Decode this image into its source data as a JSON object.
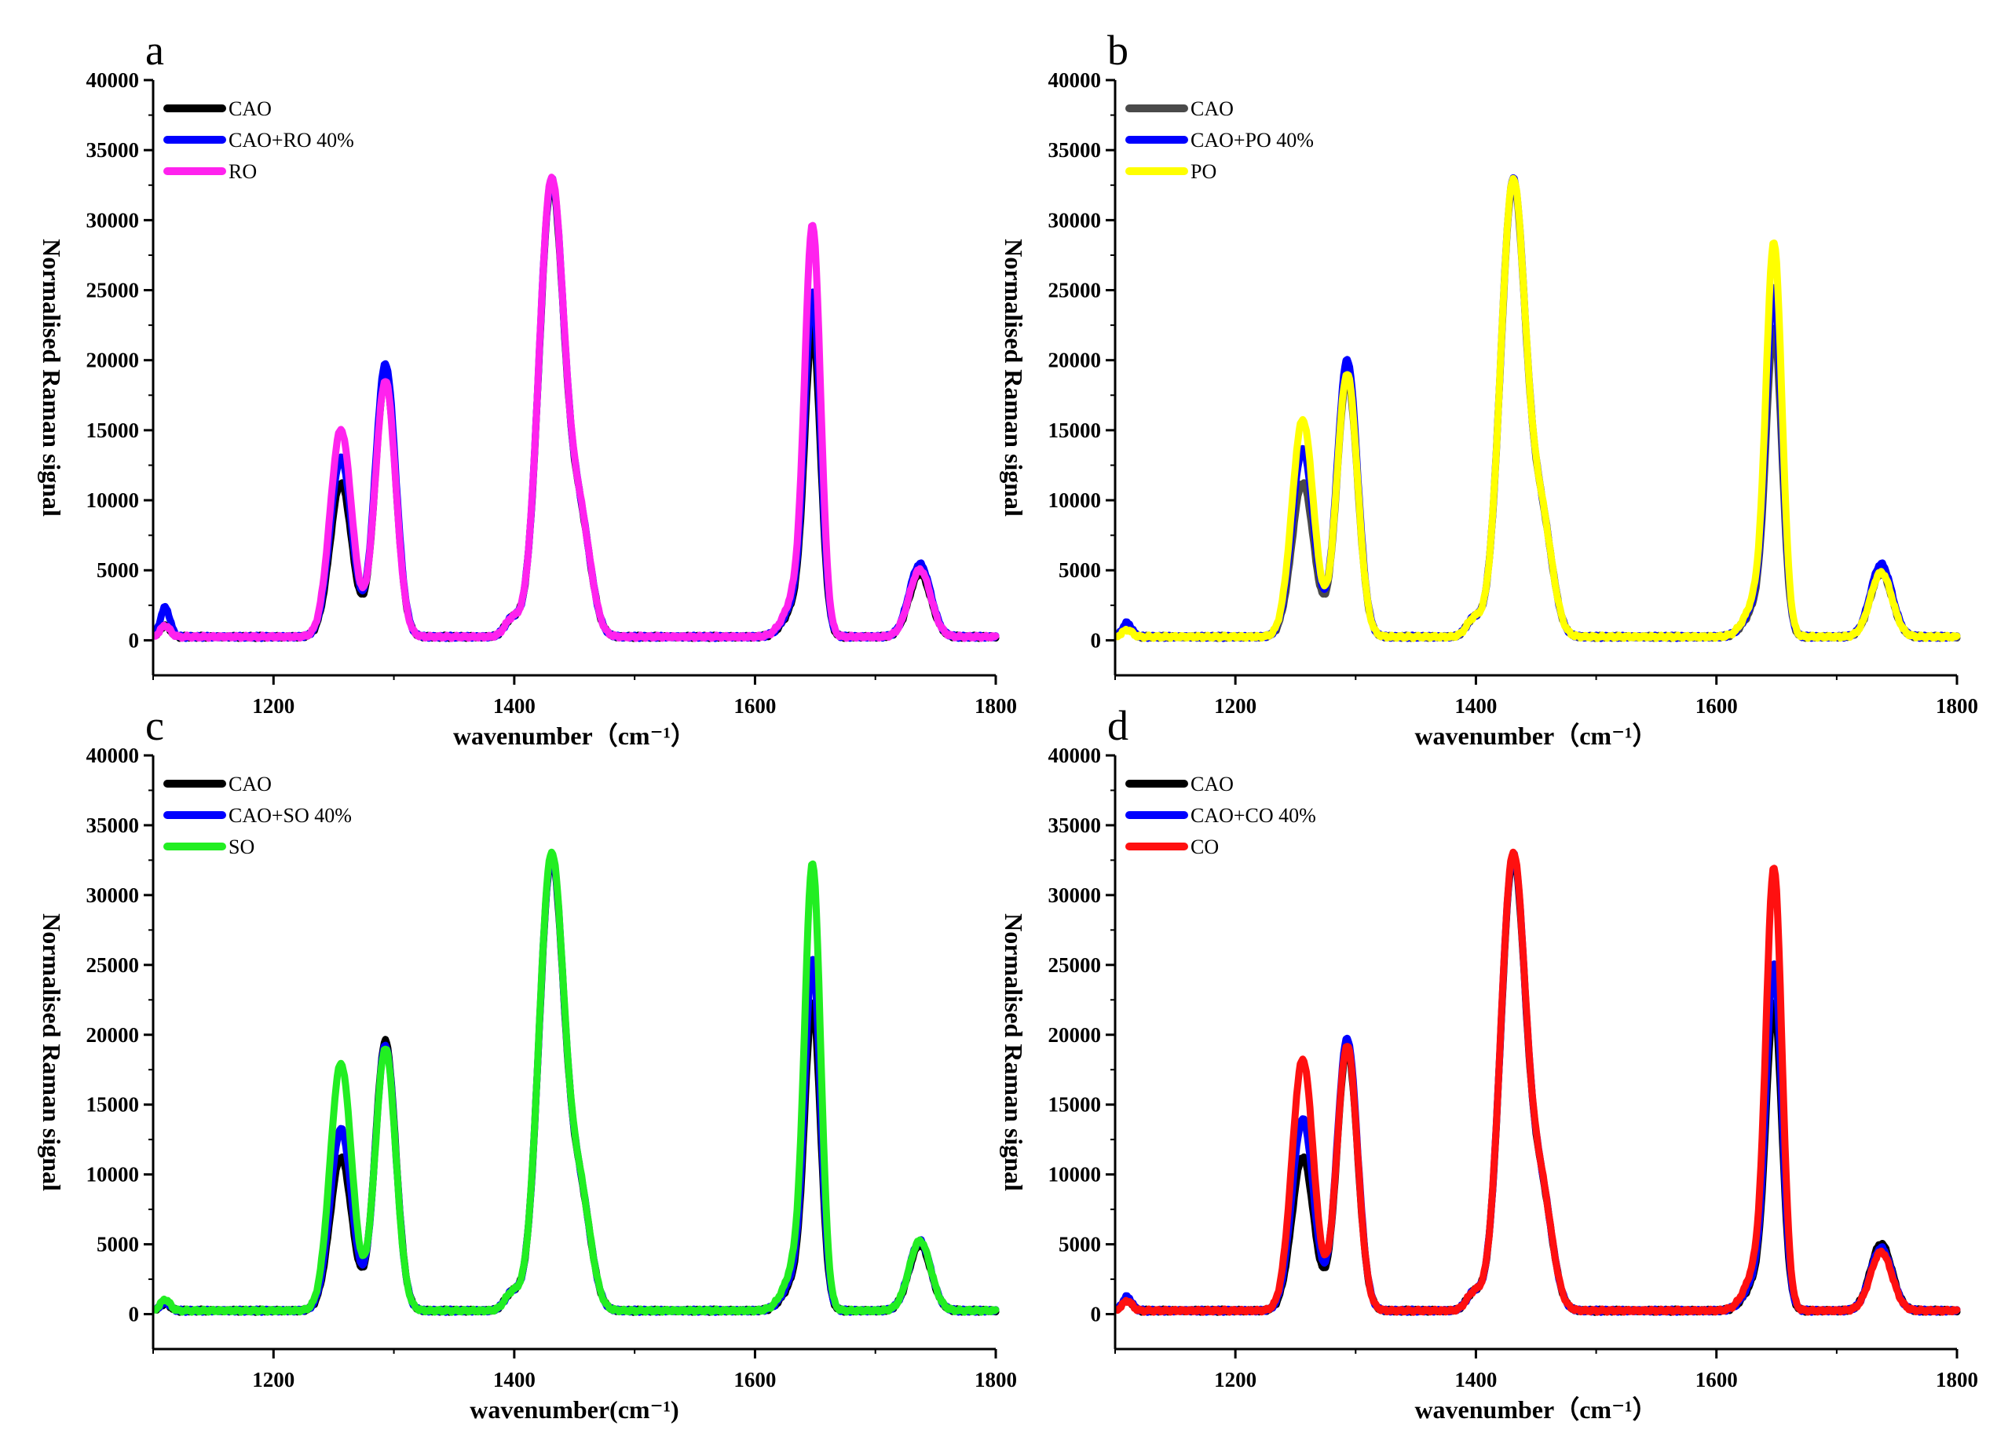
{
  "figure": {
    "description_title": "",
    "colors": {
      "black": "#000000",
      "dark_gray": "#4a4a4a",
      "blue": "#0000ff",
      "magenta": "#ff22ee",
      "yellow": "#ffff00",
      "green": "#22ee22",
      "red": "#ff1010"
    }
  },
  "chart_data": [
    {
      "panel": "a",
      "type": "line",
      "xlabel": "wavenumber（cm⁻¹）",
      "ylabel": "Normalised Raman signal",
      "xlim": [
        1100,
        1800
      ],
      "ylim": [
        -2500,
        40000
      ],
      "xticks": [
        1200,
        1400,
        1600,
        1800
      ],
      "yticks": [
        0,
        5000,
        10000,
        15000,
        20000,
        25000,
        30000,
        35000,
        40000
      ],
      "legend": "top-left",
      "series": [
        {
          "name": "CAO",
          "color": "#000000",
          "peaks": {
            "p1110": 800,
            "p1255": 11000,
            "p1293": 18500,
            "p1432": 34500,
            "p1648": 21000,
            "p1737": 4500
          }
        },
        {
          "name": "CAO+RO 40%",
          "color": "#0000ff",
          "peaks": {
            "p1110": 2100,
            "p1255": 12800,
            "p1293": 19500,
            "p1432": 34800,
            "p1648": 23500,
            "p1737": 5200
          }
        },
        {
          "name": "RO",
          "color": "#ff22ee",
          "peaks": {
            "p1110": 800,
            "p1255": 14800,
            "p1293": 18300,
            "p1432": 34900,
            "p1648": 28200,
            "p1737": 4800
          }
        }
      ]
    },
    {
      "panel": "b",
      "type": "line",
      "xlabel": "wavenumber（cm⁻¹）",
      "ylabel": "Normalised Raman signal",
      "xlim": [
        1100,
        1800
      ],
      "ylim": [
        -2500,
        40000
      ],
      "xticks": [
        1200,
        1400,
        1600,
        1800
      ],
      "yticks": [
        0,
        5000,
        10000,
        15000,
        20000,
        25000,
        30000,
        35000,
        40000
      ],
      "legend": "top-left",
      "series": [
        {
          "name": "CAO",
          "color": "#4a4a4a",
          "peaks": {
            "p1110": 800,
            "p1255": 11000,
            "p1293": 18500,
            "p1432": 34500,
            "p1648": 21000,
            "p1737": 4500
          }
        },
        {
          "name": "CAO+PO 40%",
          "color": "#0000ff",
          "peaks": {
            "p1110": 1000,
            "p1255": 13400,
            "p1293": 19800,
            "p1432": 34800,
            "p1648": 23800,
            "p1737": 5200
          }
        },
        {
          "name": "PO",
          "color": "#ffff00",
          "peaks": {
            "p1110": 500,
            "p1255": 15500,
            "p1293": 18800,
            "p1432": 34800,
            "p1648": 27000,
            "p1737": 4600
          }
        }
      ]
    },
    {
      "panel": "c",
      "type": "line",
      "xlabel": "wavenumber(cm⁻¹)",
      "ylabel": "Normalised Raman signal",
      "xlim": [
        1100,
        1800
      ],
      "ylim": [
        -2500,
        40000
      ],
      "xticks": [
        1200,
        1400,
        1600,
        1800
      ],
      "yticks": [
        0,
        5000,
        10000,
        15000,
        20000,
        25000,
        30000,
        35000,
        40000
      ],
      "legend": "top-left",
      "series": [
        {
          "name": "CAO",
          "color": "#000000",
          "peaks": {
            "p1110": 500,
            "p1255": 11000,
            "p1293": 19300,
            "p1432": 34500,
            "p1648": 21000,
            "p1737": 4700
          }
        },
        {
          "name": "CAO+SO 40%",
          "color": "#0000ff",
          "peaks": {
            "p1110": 600,
            "p1255": 13000,
            "p1293": 19000,
            "p1432": 34700,
            "p1648": 24000,
            "p1737": 5000
          }
        },
        {
          "name": "SO",
          "color": "#22ee22",
          "peaks": {
            "p1110": 800,
            "p1255": 17700,
            "p1293": 18800,
            "p1432": 34900,
            "p1648": 30700,
            "p1737": 5000
          }
        }
      ]
    },
    {
      "panel": "d",
      "type": "line",
      "xlabel": "wavenumber（cm⁻¹）",
      "ylabel": "Normalised Raman signal",
      "xlim": [
        1100,
        1800
      ],
      "ylim": [
        -2500,
        40000
      ],
      "xticks": [
        1200,
        1400,
        1600,
        1800
      ],
      "yticks": [
        0,
        5000,
        10000,
        15000,
        20000,
        25000,
        30000,
        35000,
        40000
      ],
      "legend": "top-left",
      "series": [
        {
          "name": "CAO",
          "color": "#000000",
          "peaks": {
            "p1110": 800,
            "p1255": 11000,
            "p1293": 18800,
            "p1432": 34500,
            "p1648": 21000,
            "p1737": 4800
          }
        },
        {
          "name": "CAO+CO 40%",
          "color": "#0000ff",
          "peaks": {
            "p1110": 1000,
            "p1255": 13700,
            "p1293": 19500,
            "p1432": 34800,
            "p1648": 23700,
            "p1737": 4500
          }
        },
        {
          "name": "CO",
          "color": "#ff1010",
          "peaks": {
            "p1110": 700,
            "p1255": 18000,
            "p1293": 19000,
            "p1432": 34900,
            "p1648": 30400,
            "p1737": 4200
          }
        }
      ]
    }
  ]
}
